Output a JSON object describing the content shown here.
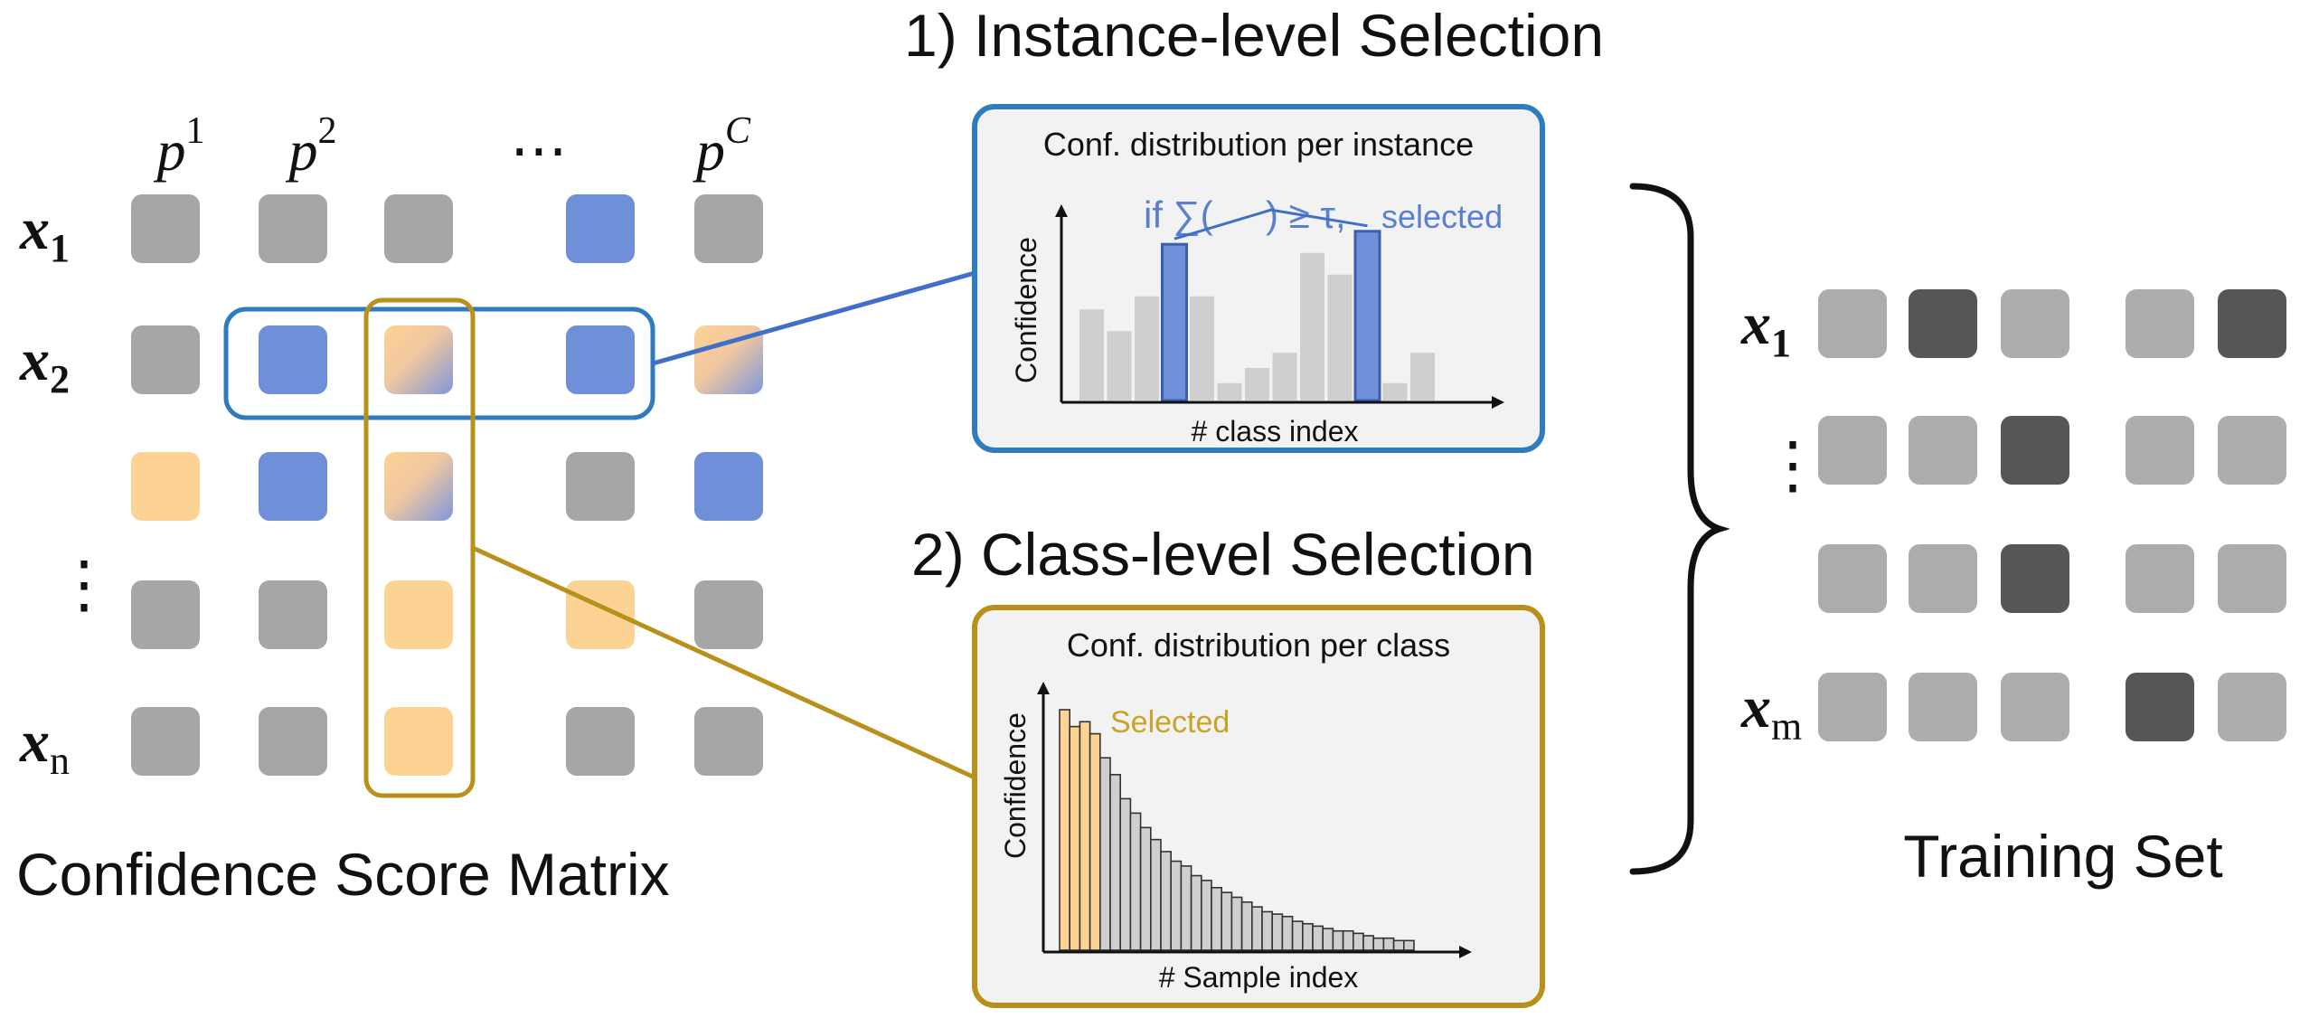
{
  "colors": {
    "gray": "#a6a6a6",
    "blue": "#6f8fd8",
    "orange": "#fdd394",
    "dark": "#565656",
    "light": "#acacac",
    "blue_frame": "#2e7cbf",
    "gold_frame": "#b8901a",
    "bar_gray": "#cfcfcf",
    "bar_blue": "#6f8fd8",
    "bar_orange": "#fdd394",
    "panel_bg": "#f2f2f2",
    "selected_text": "#c9a227",
    "formula_text": "#5b7fd0"
  },
  "matrix": {
    "title": "Confidence Score Matrix",
    "col_headers": [
      {
        "base": "p",
        "sup": "1"
      },
      {
        "base": "p",
        "sup": "2"
      },
      {
        "base": "⋯",
        "sup": ""
      },
      {
        "base": "p",
        "sup": "C"
      }
    ],
    "row_labels": [
      {
        "base": "x",
        "sub": "1"
      },
      {
        "base": "x",
        "sub": "2"
      },
      {
        "base": "",
        "sub": ""
      },
      {
        "base": "⋮",
        "sub": ""
      },
      {
        "base": "x",
        "sub": "n"
      }
    ],
    "cells": [
      [
        "gray",
        "gray",
        "gray",
        "blue",
        "gray"
      ],
      [
        "gray",
        "blue",
        "mix",
        "blue",
        "mix"
      ],
      [
        "orange",
        "blue",
        "mix",
        "gray",
        "blue"
      ],
      [
        "gray",
        "gray",
        "orange",
        "orange",
        "gray"
      ],
      [
        "gray",
        "gray",
        "orange",
        "gray",
        "gray"
      ]
    ]
  },
  "instance_panel": {
    "heading": "1) Instance-level Selection",
    "title": "Conf. distribution per instance",
    "formula_if": "if ∑(",
    "formula_rest": ") ≥ τ,",
    "formula_selected": "selected",
    "ylabel": "Confidence",
    "xlabel": "# class index",
    "bars": [
      0.42,
      0.32,
      0.48,
      0.72,
      0.48,
      0.08,
      0.15,
      0.22,
      0.68,
      0.58,
      0.78,
      0.08,
      0.22
    ],
    "highlight": [
      3,
      10
    ]
  },
  "class_panel": {
    "heading": "2) Class-level Selection",
    "title": "Conf. distribution per class",
    "selected_label": "Selected",
    "ylabel": "Confidence",
    "xlabel": "# Sample index",
    "bars": [
      1.0,
      0.93,
      0.95,
      0.9,
      0.8,
      0.73,
      0.63,
      0.57,
      0.51,
      0.46,
      0.41,
      0.37,
      0.35,
      0.31,
      0.29,
      0.26,
      0.24,
      0.22,
      0.2,
      0.18,
      0.16,
      0.15,
      0.14,
      0.12,
      0.11,
      0.1,
      0.09,
      0.08,
      0.08,
      0.07,
      0.06,
      0.05,
      0.05,
      0.04,
      0.04
    ],
    "selected_count": 4
  },
  "training_set": {
    "title": "Training Set",
    "row_labels": [
      {
        "base": "x",
        "sub": "1"
      },
      {
        "base": "⋮",
        "sub": ""
      },
      {
        "base": "",
        "sub": ""
      },
      {
        "base": "x",
        "sub": "m"
      }
    ],
    "cells": [
      [
        "light",
        "dark",
        "light",
        "light",
        "dark"
      ],
      [
        "light",
        "light",
        "dark",
        "light",
        "light"
      ],
      [
        "light",
        "light",
        "dark",
        "light",
        "light"
      ],
      [
        "light",
        "light",
        "light",
        "dark",
        "light"
      ]
    ]
  }
}
